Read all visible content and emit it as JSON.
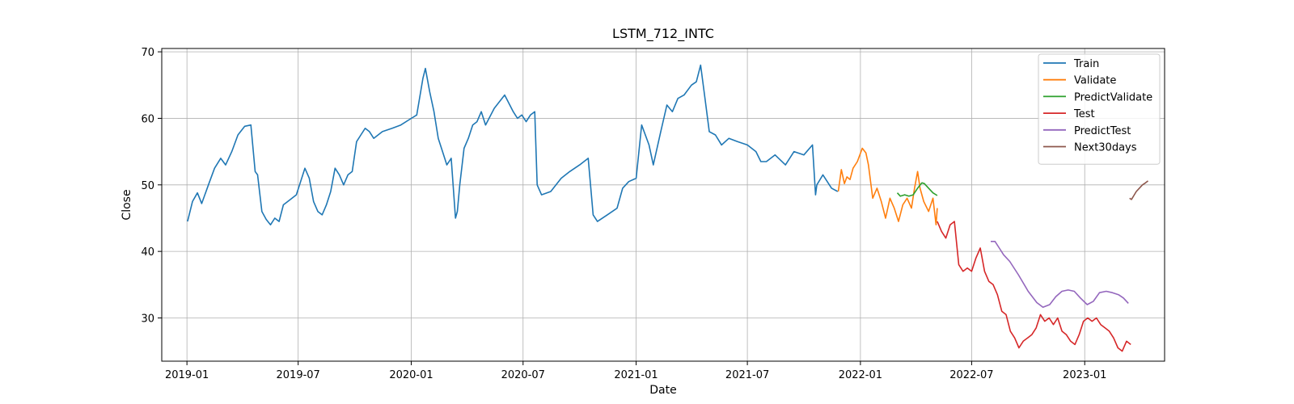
{
  "chart_data": {
    "type": "line",
    "title": "LSTM_712_INTC",
    "xlabel": "Date",
    "ylabel": "Close",
    "xlim": [
      "2018-11-21",
      "2023-05-11"
    ],
    "ylim": [
      23.5,
      70.5
    ],
    "x_ticks": [
      "2019-01",
      "2019-07",
      "2020-01",
      "2020-07",
      "2021-01",
      "2021-07",
      "2022-01",
      "2022-07",
      "2023-01"
    ],
    "y_ticks": [
      30,
      40,
      50,
      60,
      70
    ],
    "grid": true,
    "legend_position": "top-right",
    "series": [
      {
        "name": "Train",
        "color": "#1f77b4",
        "x": [
          "2019-01-02",
          "2019-01-10",
          "2019-01-18",
          "2019-01-25",
          "2019-02-05",
          "2019-02-15",
          "2019-02-25",
          "2019-03-05",
          "2019-03-15",
          "2019-03-25",
          "2019-04-05",
          "2019-04-15",
          "2019-04-22",
          "2019-04-26",
          "2019-05-03",
          "2019-05-10",
          "2019-05-17",
          "2019-05-24",
          "2019-05-31",
          "2019-06-07",
          "2019-06-14",
          "2019-06-21",
          "2019-06-28",
          "2019-07-05",
          "2019-07-12",
          "2019-07-19",
          "2019-07-26",
          "2019-08-02",
          "2019-08-09",
          "2019-08-16",
          "2019-08-23",
          "2019-08-30",
          "2019-09-06",
          "2019-09-13",
          "2019-09-20",
          "2019-09-27",
          "2019-10-04",
          "2019-10-11",
          "2019-10-18",
          "2019-10-25",
          "2019-11-01",
          "2019-11-15",
          "2019-12-01",
          "2019-12-15",
          "2020-01-01",
          "2020-01-10",
          "2020-01-20",
          "2020-01-24",
          "2020-01-31",
          "2020-02-07",
          "2020-02-14",
          "2020-02-21",
          "2020-02-28",
          "2020-03-06",
          "2020-03-13",
          "2020-03-16",
          "2020-03-20",
          "2020-03-27",
          "2020-04-03",
          "2020-04-10",
          "2020-04-17",
          "2020-04-24",
          "2020-05-01",
          "2020-05-15",
          "2020-06-01",
          "2020-06-15",
          "2020-06-22",
          "2020-06-29",
          "2020-07-06",
          "2020-07-13",
          "2020-07-20",
          "2020-07-24",
          "2020-07-31",
          "2020-08-15",
          "2020-09-01",
          "2020-09-15",
          "2020-10-01",
          "2020-10-15",
          "2020-10-23",
          "2020-10-30",
          "2020-11-15",
          "2020-12-01",
          "2020-12-10",
          "2020-12-20",
          "2021-01-01",
          "2021-01-10",
          "2021-01-22",
          "2021-01-29",
          "2021-02-10",
          "2021-02-20",
          "2021-03-01",
          "2021-03-10",
          "2021-03-20",
          "2021-04-01",
          "2021-04-09",
          "2021-04-16",
          "2021-04-23",
          "2021-04-30",
          "2021-05-10",
          "2021-05-20",
          "2021-06-01",
          "2021-06-15",
          "2021-07-01",
          "2021-07-15",
          "2021-07-23",
          "2021-08-01",
          "2021-08-15",
          "2021-09-01",
          "2021-09-15",
          "2021-10-01",
          "2021-10-15",
          "2021-10-20",
          "2021-10-22",
          "2021-11-01",
          "2021-11-15",
          "2021-11-25"
        ],
        "y": [
          44.5,
          47.5,
          48.8,
          47.2,
          50.0,
          52.5,
          54.0,
          53.0,
          55.0,
          57.5,
          58.8,
          59.0,
          52.0,
          51.5,
          46.0,
          44.8,
          44.0,
          45.0,
          44.5,
          47.0,
          47.5,
          48.0,
          48.5,
          50.5,
          52.5,
          51.0,
          47.5,
          46.0,
          45.5,
          47.0,
          49.0,
          52.5,
          51.5,
          50.0,
          51.5,
          52.0,
          56.5,
          57.5,
          58.5,
          58.0,
          57.0,
          58.0,
          58.5,
          59.0,
          60.0,
          60.5,
          66.0,
          67.5,
          64.0,
          61.0,
          57.0,
          55.0,
          53.0,
          54.0,
          45.0,
          46.0,
          50.0,
          55.5,
          57.0,
          59.0,
          59.5,
          61.0,
          59.0,
          61.5,
          63.5,
          61.0,
          60.0,
          60.5,
          59.5,
          60.5,
          61.0,
          50.0,
          48.5,
          49.0,
          51.0,
          52.0,
          53.0,
          54.0,
          45.5,
          44.5,
          45.5,
          46.5,
          49.5,
          50.5,
          51.0,
          59.0,
          56.0,
          53.0,
          58.0,
          62.0,
          61.0,
          63.0,
          63.5,
          65.0,
          65.5,
          68.0,
          63.0,
          58.0,
          57.5,
          56.0,
          57.0,
          56.5,
          56.0,
          55.0,
          53.5,
          53.5,
          54.5,
          53.0,
          55.0,
          54.5,
          56.0,
          48.5,
          50.0,
          51.5,
          49.5,
          49.0
        ]
      },
      {
        "name": "Validate",
        "color": "#ff7f0e",
        "x": [
          "2021-11-26",
          "2021-12-01",
          "2021-12-06",
          "2021-12-10",
          "2021-12-15",
          "2021-12-20",
          "2021-12-27",
          "2022-01-04",
          "2022-01-10",
          "2022-01-14",
          "2022-01-21",
          "2022-01-28",
          "2022-02-04",
          "2022-02-11",
          "2022-02-18",
          "2022-02-25",
          "2022-03-04",
          "2022-03-11",
          "2022-03-18",
          "2022-03-25",
          "2022-03-30",
          "2022-04-04",
          "2022-04-08",
          "2022-04-14",
          "2022-04-22",
          "2022-04-29",
          "2022-05-04",
          "2022-05-06"
        ],
        "y": [
          49.0,
          52.3,
          50.2,
          51.2,
          50.8,
          52.5,
          53.5,
          55.5,
          54.8,
          53.0,
          48.0,
          49.5,
          47.5,
          45.0,
          48.0,
          46.5,
          44.5,
          47.0,
          48.0,
          46.5,
          49.5,
          52.0,
          49.5,
          47.5,
          46.0,
          48.0,
          44.0,
          46.5
        ]
      },
      {
        "name": "PredictValidate",
        "color": "#2ca02c",
        "x": [
          "2022-03-02",
          "2022-03-07",
          "2022-03-14",
          "2022-03-21",
          "2022-03-28",
          "2022-04-04",
          "2022-04-11",
          "2022-04-15",
          "2022-04-22",
          "2022-04-29",
          "2022-05-06"
        ],
        "y": [
          48.8,
          48.3,
          48.5,
          48.3,
          48.5,
          49.5,
          50.3,
          50.2,
          49.5,
          48.8,
          48.4
        ]
      },
      {
        "name": "Test",
        "color": "#d62728",
        "x": [
          "2022-05-06",
          "2022-05-13",
          "2022-05-20",
          "2022-05-27",
          "2022-06-03",
          "2022-06-10",
          "2022-06-17",
          "2022-06-24",
          "2022-07-01",
          "2022-07-08",
          "2022-07-15",
          "2022-07-22",
          "2022-07-29",
          "2022-08-05",
          "2022-08-12",
          "2022-08-19",
          "2022-08-26",
          "2022-09-02",
          "2022-09-09",
          "2022-09-16",
          "2022-09-23",
          "2022-09-30",
          "2022-10-07",
          "2022-10-14",
          "2022-10-21",
          "2022-10-28",
          "2022-11-04",
          "2022-11-11",
          "2022-11-18",
          "2022-11-25",
          "2022-12-02",
          "2022-12-09",
          "2022-12-16",
          "2022-12-23",
          "2022-12-30",
          "2023-01-06",
          "2023-01-13",
          "2023-01-20",
          "2023-01-27",
          "2023-02-03",
          "2023-02-10",
          "2023-02-17",
          "2023-02-24",
          "2023-03-03",
          "2023-03-10",
          "2023-03-17"
        ],
        "y": [
          44.5,
          43.0,
          42.0,
          44.0,
          44.5,
          38.0,
          37.0,
          37.5,
          37.0,
          39.0,
          40.5,
          37.0,
          35.5,
          35.0,
          33.5,
          31.0,
          30.5,
          28.0,
          27.0,
          25.5,
          26.5,
          27.0,
          27.5,
          28.5,
          30.5,
          29.5,
          30.0,
          29.0,
          30.0,
          28.0,
          27.5,
          26.5,
          26.0,
          27.5,
          29.5,
          30.0,
          29.5,
          30.0,
          29.0,
          28.5,
          28.0,
          27.0,
          25.5,
          25.0,
          26.5,
          26.0
        ]
      },
      {
        "name": "PredictTest",
        "color": "#9467bd",
        "x": [
          "2022-08-01",
          "2022-08-08",
          "2022-08-15",
          "2022-08-22",
          "2022-09-01",
          "2022-09-15",
          "2022-10-01",
          "2022-10-15",
          "2022-10-25",
          "2022-11-05",
          "2022-11-15",
          "2022-11-25",
          "2022-12-05",
          "2022-12-15",
          "2022-12-25",
          "2023-01-05",
          "2023-01-15",
          "2023-01-25",
          "2023-02-05",
          "2023-02-15",
          "2023-02-25",
          "2023-03-05",
          "2023-03-13"
        ],
        "y": [
          41.5,
          41.5,
          40.5,
          39.5,
          38.5,
          36.5,
          34.0,
          32.3,
          31.6,
          32.0,
          33.2,
          34.0,
          34.2,
          34.0,
          33.0,
          32.0,
          32.5,
          33.8,
          34.0,
          33.8,
          33.5,
          33.0,
          32.2
        ]
      },
      {
        "name": "Next30days",
        "color": "#8c564b",
        "x": [
          "2023-03-15",
          "2023-03-18",
          "2023-03-22",
          "2023-03-26",
          "2023-03-31",
          "2023-04-05",
          "2023-04-10",
          "2023-04-14"
        ],
        "y": [
          48.0,
          47.8,
          48.4,
          49.0,
          49.5,
          50.0,
          50.3,
          50.6
        ]
      }
    ]
  }
}
